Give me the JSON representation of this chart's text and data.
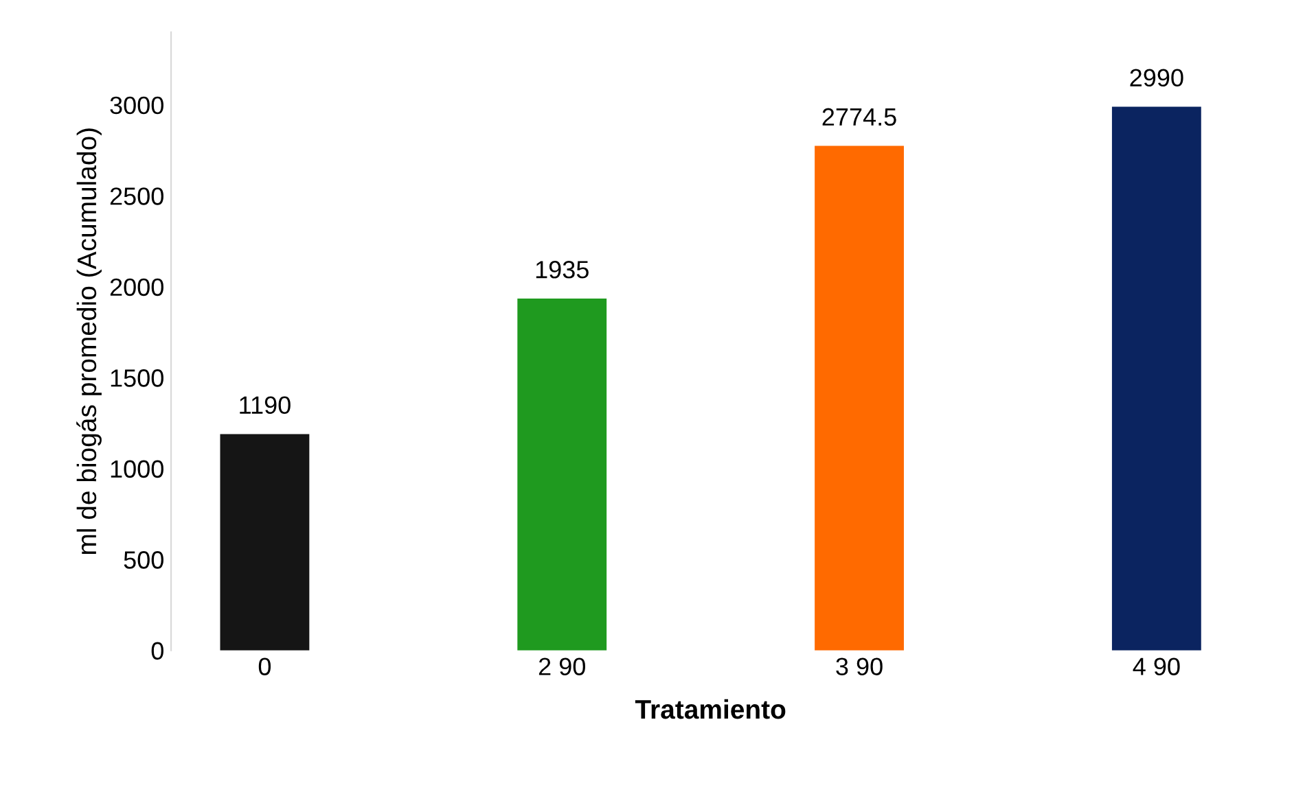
{
  "chart_data": {
    "type": "bar",
    "xlabel": "Tratamiento",
    "ylabel": "ml de biogás promedio (Acumulado)",
    "categories": [
      "0",
      "2 90",
      "3 90",
      "4 90"
    ],
    "values": [
      1190,
      1935,
      2774.5,
      2990
    ],
    "colors": [
      "#151515",
      "#1f9a1f",
      "#ff6a00",
      "#0b2460"
    ],
    "ylim": [
      0,
      3400
    ],
    "yticks": [
      0,
      500,
      1000,
      1500,
      2000,
      2500,
      3000
    ],
    "data_labels": true,
    "grid": false,
    "legend": false
  }
}
